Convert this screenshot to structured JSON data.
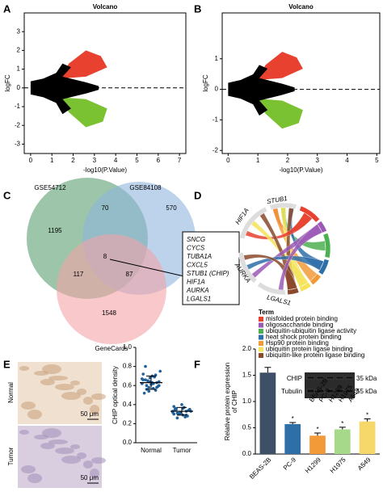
{
  "panels": [
    "A",
    "B",
    "C",
    "D",
    "E",
    "F"
  ],
  "chart_data": [
    {
      "type": "volcano",
      "title": "Volcano",
      "xlabel": "-log10(P.Value)",
      "ylabel": "logFC",
      "xlim": [
        -0.3,
        7.3
      ],
      "ylim": [
        -3.5,
        4
      ],
      "xticks": [
        0,
        1,
        2,
        3,
        4,
        5,
        6,
        7
      ],
      "yticks": [
        -3,
        -2,
        -1,
        0,
        1,
        2,
        3
      ],
      "hline": 0,
      "up_color": "#e8412f",
      "down_color": "#7ac231",
      "base_color": "#000000"
    },
    {
      "type": "volcano",
      "title": "Volcano",
      "xlabel": "-log10(P.Value)",
      "ylabel": "logFC",
      "xlim": [
        -0.2,
        5.1
      ],
      "ylim": [
        -2.1,
        2.5
      ],
      "xticks": [
        0,
        1,
        2,
        3,
        4,
        5
      ],
      "yticks": [
        -2,
        -1,
        0,
        1
      ],
      "hline": 0,
      "up_color": "#e8412f",
      "down_color": "#7ac231",
      "base_color": "#000000"
    },
    {
      "type": "dot",
      "ylabel": "CHIP optical density",
      "categories": [
        "Normal",
        "Tumor"
      ],
      "values": [
        [
          0.62,
          0.66,
          0.58,
          0.7,
          0.55,
          0.64,
          0.72,
          0.6,
          0.68,
          0.57,
          0.63,
          0.75,
          0.52,
          0.65,
          0.61,
          0.69,
          0.59,
          0.67,
          0.8,
          0.54,
          0.63,
          0.71,
          0.6,
          0.66,
          0.56,
          0.64,
          0.62,
          0.58
        ],
        [
          0.33,
          0.35,
          0.3,
          0.36,
          0.29,
          0.34,
          0.38,
          0.31,
          0.32,
          0.37,
          0.28,
          0.33,
          0.35,
          0.3,
          0.4,
          0.27,
          0.34,
          0.32,
          0.36,
          0.31,
          0.29,
          0.33,
          0.35,
          0.3,
          0.26
        ]
      ],
      "means": [
        0.63,
        0.33
      ],
      "sd": [
        0.07,
        0.04
      ],
      "color": "#1f5f9a",
      "ylim": [
        0,
        1.0
      ],
      "yticks": [
        {
          "value": 0,
          "label": "0.0"
        },
        {
          "value": 0.2,
          "label": "0.2"
        },
        {
          "value": 0.4,
          "label": "0.4"
        },
        {
          "value": 0.6,
          "label": "0.6"
        },
        {
          "value": 0.8,
          "label": "0.8"
        },
        {
          "value": 1.0,
          "label": "1.0"
        }
      ]
    },
    {
      "type": "bar",
      "ylabel": [
        "Relative protein expression",
        "of CHIP"
      ],
      "categories": [
        "BEAS-2B",
        "PC-9",
        "H1299",
        "H1975",
        "A549"
      ],
      "values": [
        1.55,
        0.57,
        0.35,
        0.47,
        0.62
      ],
      "errors": [
        0.1,
        0.03,
        0.05,
        0.04,
        0.05
      ],
      "colors": [
        "#3d5066",
        "#2f6fa8",
        "#f29a38",
        "#a7d98b",
        "#f5d76a"
      ],
      "annotations": [
        "*",
        "*",
        "*",
        "*"
      ],
      "ylim": [
        0,
        2.0
      ],
      "yticks": [
        {
          "value": 0,
          "label": "0.0"
        },
        {
          "value": 0.5,
          "label": "0.5"
        },
        {
          "value": 1.0,
          "label": "1.0"
        },
        {
          "value": 1.5,
          "label": "1.5"
        },
        {
          "value": 2.0,
          "label": "2.0"
        }
      ],
      "blot": {
        "bands": [
          "CHIP",
          "Tubulin"
        ],
        "sizes": [
          "35 kDa",
          "55 kDa"
        ],
        "lanes": [
          "BEAS-2B",
          "PC-9",
          "H1299",
          "H1975",
          "A549"
        ]
      }
    }
  ],
  "venn": {
    "sets": [
      "GSE54712",
      "GSE84108",
      "GeneCards"
    ],
    "counts": {
      "a": "1195",
      "ab": "70",
      "b": "570",
      "abc": "8",
      "ac": "117",
      "bc": "87",
      "c": "1548"
    },
    "genes": [
      "SNCG",
      "CYCS",
      "TUBA1A",
      "CXCL5",
      "STUB1 (CHIP)",
      "HIF1A",
      "AURKA",
      "LGALS1"
    ]
  },
  "chord": {
    "genes": [
      "STUB1",
      "HIF1A",
      "AURKA",
      "LGALS1"
    ],
    "legend_title": "Term",
    "terms": [
      {
        "name": "misfolded protein binding",
        "color": "#e8412f"
      },
      {
        "name": "oligosaccharide binding",
        "color": "#9b59b6"
      },
      {
        "name": "ubiquitin-ubiquitin ligase activity",
        "color": "#4caf50"
      },
      {
        "name": "heat shock protein binding",
        "color": "#2f6fa8"
      },
      {
        "name": "Hsp90 protein binding",
        "color": "#f29a38"
      },
      {
        "name": "ubiquitin protein ligase binding",
        "color": "#f5e35a"
      },
      {
        "name": "ubiquitin-like protein ligase binding",
        "color": "#8b4a2b"
      }
    ]
  },
  "images": {
    "labels": [
      "Normal",
      "Tumor"
    ],
    "scale": "50 μm"
  }
}
